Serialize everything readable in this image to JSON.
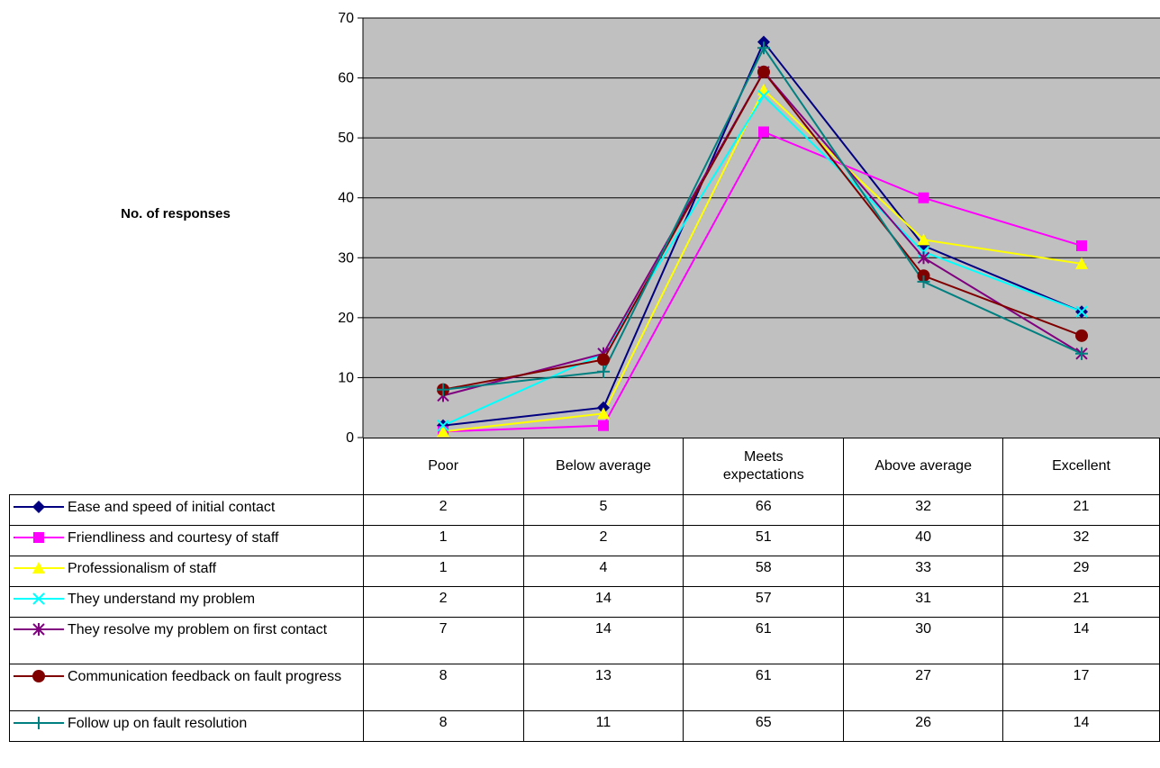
{
  "chart_data": {
    "type": "line",
    "ylabel": "No. of responses",
    "ylim": [
      0,
      70
    ],
    "yticks": [
      0,
      10,
      20,
      30,
      40,
      50,
      60,
      70
    ],
    "grid": true,
    "plot_background": "#c0c0c0",
    "legend": "data-table",
    "categories": [
      "Poor",
      "Below average",
      "Meets expectations",
      "Above average",
      "Excellent"
    ],
    "series": [
      {
        "name": "Ease and speed of initial contact",
        "color": "#000080",
        "marker": "diamond",
        "values": [
          2,
          5,
          66,
          32,
          21
        ]
      },
      {
        "name": "Friendliness and courtesy of staff",
        "color": "#ff00ff",
        "marker": "square",
        "values": [
          1,
          2,
          51,
          40,
          32
        ]
      },
      {
        "name": "Professionalism of staff",
        "color": "#ffff00",
        "marker": "triangle",
        "values": [
          1,
          4,
          58,
          33,
          29
        ]
      },
      {
        "name": "They understand my problem",
        "color": "#00ffff",
        "marker": "x",
        "values": [
          2,
          14,
          57,
          31,
          21
        ]
      },
      {
        "name": "They resolve my problem on first contact",
        "color": "#800080",
        "marker": "star",
        "values": [
          7,
          14,
          61,
          30,
          14
        ]
      },
      {
        "name": "Communication feedback on fault progress",
        "color": "#800000",
        "marker": "circle",
        "values": [
          8,
          13,
          61,
          27,
          17
        ]
      },
      {
        "name": "Follow up on fault resolution",
        "color": "#008080",
        "marker": "plus",
        "values": [
          8,
          11,
          65,
          26,
          14
        ]
      }
    ]
  }
}
